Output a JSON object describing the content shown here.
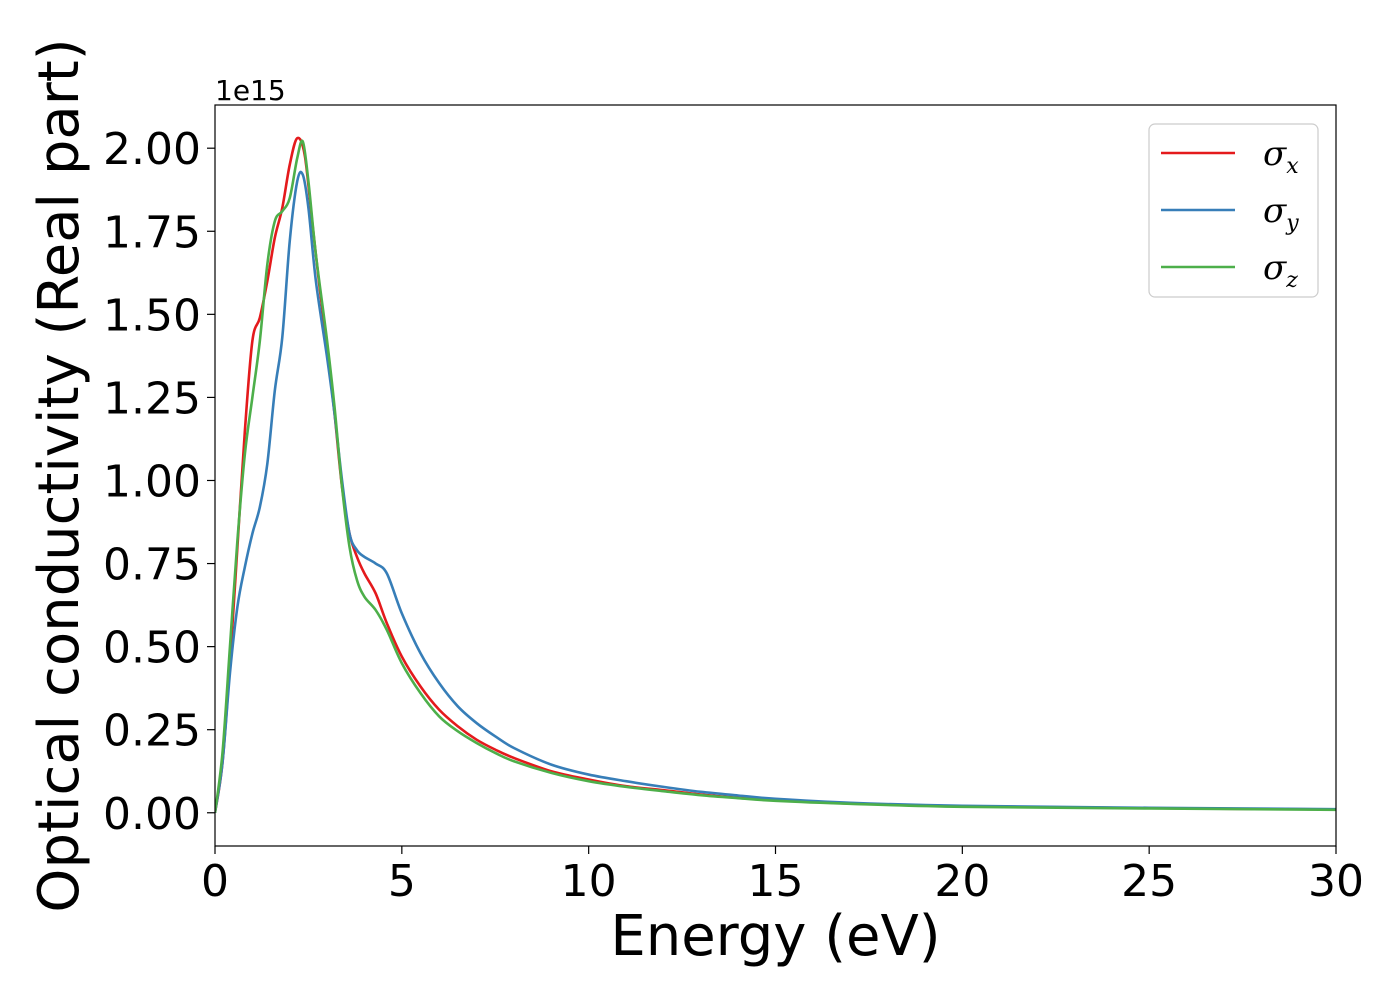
{
  "chart_data": {
    "type": "line",
    "title": "",
    "xlabel": "Energy (eV)",
    "ylabel": "Optical conductivity (Real part)",
    "y_offset_label": "1e15",
    "xlim": [
      0,
      30
    ],
    "ylim": [
      -0.1,
      2.13
    ],
    "x_ticks": [
      0,
      5,
      10,
      15,
      20,
      25,
      30
    ],
    "x_tick_labels": [
      "0",
      "5",
      "10",
      "15",
      "20",
      "25",
      "30"
    ],
    "y_ticks": [
      0,
      0.25,
      0.5,
      0.75,
      1.0,
      1.25,
      1.5,
      1.75,
      2.0
    ],
    "y_tick_labels": [
      "0.00",
      "0.25",
      "0.50",
      "0.75",
      "1.00",
      "1.25",
      "1.50",
      "1.75",
      "2.00"
    ],
    "grid": false,
    "legend_position": "top-right",
    "colors": {
      "sigma_x": "#e41a1c",
      "sigma_y": "#377eb8",
      "sigma_z": "#4daf4a"
    },
    "series": [
      {
        "name": "σx",
        "symbol": "σ",
        "subscript": "x",
        "color": "#e41a1c",
        "x": [
          0,
          0.2,
          0.4,
          0.6,
          0.8,
          1.0,
          1.2,
          1.4,
          1.6,
          1.8,
          2.0,
          2.2,
          2.4,
          2.6,
          2.8,
          3.0,
          3.2,
          3.4,
          3.6,
          3.8,
          4.0,
          4.3,
          4.6,
          5.0,
          5.5,
          6.0,
          6.5,
          7.0,
          7.5,
          8.0,
          9.0,
          10.0,
          11.0,
          12.0,
          13.0,
          14.0,
          15.0,
          17.0,
          20.0,
          25.0,
          30.0
        ],
        "y": [
          0.0,
          0.15,
          0.45,
          0.8,
          1.15,
          1.42,
          1.49,
          1.6,
          1.73,
          1.82,
          1.95,
          2.03,
          1.98,
          1.78,
          1.58,
          1.4,
          1.2,
          0.98,
          0.84,
          0.77,
          0.72,
          0.66,
          0.57,
          0.47,
          0.38,
          0.31,
          0.26,
          0.22,
          0.19,
          0.165,
          0.125,
          0.1,
          0.08,
          0.068,
          0.055,
          0.045,
          0.038,
          0.028,
          0.02,
          0.014,
          0.01
        ]
      },
      {
        "name": "σy",
        "symbol": "σ",
        "subscript": "y",
        "color": "#377eb8",
        "x": [
          0,
          0.2,
          0.4,
          0.6,
          0.8,
          1.0,
          1.2,
          1.4,
          1.6,
          1.8,
          2.0,
          2.2,
          2.35,
          2.5,
          2.7,
          3.0,
          3.2,
          3.4,
          3.6,
          3.8,
          4.0,
          4.3,
          4.6,
          5.0,
          5.5,
          6.0,
          6.5,
          7.0,
          7.5,
          8.0,
          9.0,
          10.0,
          11.0,
          12.0,
          13.0,
          14.0,
          15.0,
          17.0,
          20.0,
          25.0,
          30.0
        ],
        "y": [
          0.0,
          0.15,
          0.42,
          0.62,
          0.74,
          0.84,
          0.92,
          1.05,
          1.27,
          1.43,
          1.72,
          1.9,
          1.92,
          1.82,
          1.6,
          1.37,
          1.2,
          1.0,
          0.84,
          0.79,
          0.77,
          0.75,
          0.72,
          0.6,
          0.48,
          0.39,
          0.32,
          0.27,
          0.23,
          0.195,
          0.145,
          0.115,
          0.095,
          0.078,
          0.063,
          0.052,
          0.042,
          0.03,
          0.021,
          0.015,
          0.011
        ]
      },
      {
        "name": "σz",
        "symbol": "σ",
        "subscript": "z",
        "color": "#4daf4a",
        "x": [
          0,
          0.2,
          0.4,
          0.6,
          0.8,
          1.0,
          1.2,
          1.4,
          1.6,
          1.8,
          2.0,
          2.2,
          2.35,
          2.5,
          2.7,
          3.0,
          3.2,
          3.4,
          3.6,
          3.8,
          4.0,
          4.3,
          4.6,
          5.0,
          5.5,
          6.0,
          6.5,
          7.0,
          7.5,
          8.0,
          9.0,
          10.0,
          11.0,
          12.0,
          13.0,
          14.0,
          15.0,
          17.0,
          20.0,
          25.0,
          30.0
        ],
        "y": [
          0.0,
          0.18,
          0.5,
          0.82,
          1.08,
          1.25,
          1.42,
          1.65,
          1.78,
          1.81,
          1.85,
          1.97,
          2.02,
          1.9,
          1.68,
          1.42,
          1.22,
          0.98,
          0.8,
          0.7,
          0.65,
          0.61,
          0.55,
          0.45,
          0.36,
          0.29,
          0.245,
          0.21,
          0.18,
          0.155,
          0.12,
          0.095,
          0.078,
          0.065,
          0.053,
          0.044,
          0.036,
          0.027,
          0.018,
          0.013,
          0.009
        ]
      }
    ]
  }
}
